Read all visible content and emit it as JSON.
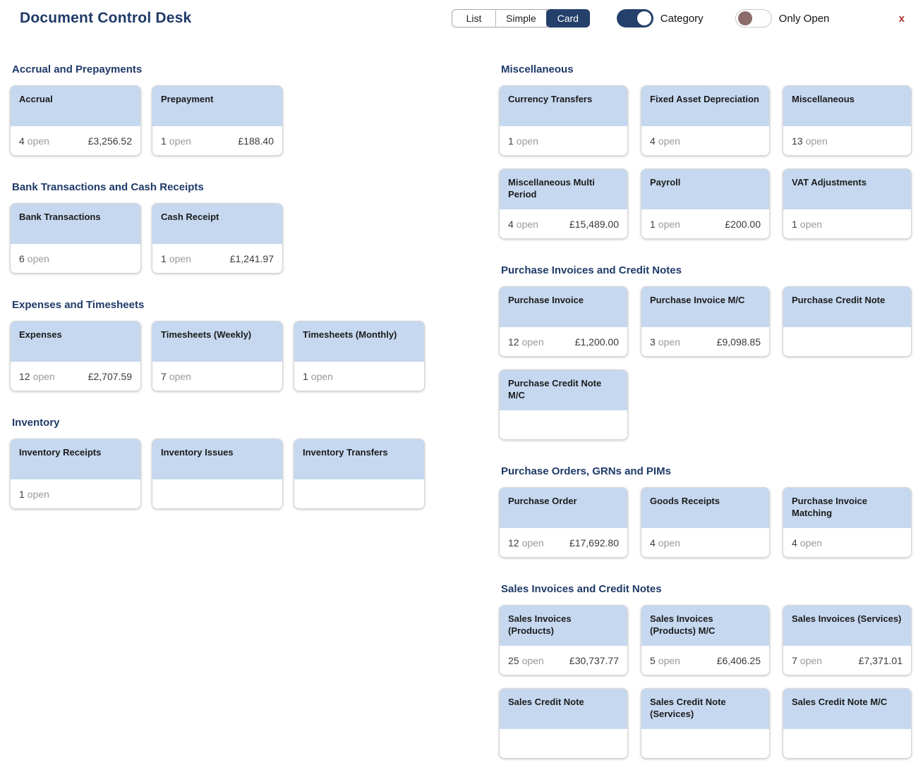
{
  "header": {
    "title": "Document Control Desk",
    "view_switcher": {
      "options": [
        "List",
        "Simple",
        "Card"
      ],
      "selected": "Card"
    },
    "toggles": [
      {
        "name": "category",
        "label": "Category",
        "on": true
      },
      {
        "name": "only-open",
        "label": "Only Open",
        "on": false
      }
    ],
    "close_label": "x"
  },
  "open_label": "open",
  "colors": {
    "heading_navy": "#1f3a68",
    "selected_segment": "#24406b",
    "toggle_on": "#24406b",
    "toggle_off_knob": "#8d6b6b",
    "card_header_blue": "#c6d8f0",
    "close_red": "#a83434"
  },
  "columns": [
    {
      "sections": [
        {
          "title": "Accrual and Prepayments",
          "cards": [
            {
              "title": "Accrual",
              "open": "4",
              "amount": "£3,256.52"
            },
            {
              "title": "Prepayment",
              "open": "1",
              "amount": "£188.40"
            }
          ]
        },
        {
          "title": "Bank Transactions and Cash Receipts",
          "cards": [
            {
              "title": "Bank Transactions",
              "open": "6",
              "amount": ""
            },
            {
              "title": "Cash Receipt",
              "open": "1",
              "amount": "£1,241.97"
            }
          ]
        },
        {
          "title": "Expenses and Timesheets",
          "cards": [
            {
              "title": "Expenses",
              "open": "12",
              "amount": "£2,707.59"
            },
            {
              "title": "Timesheets (Weekly)",
              "open": "7",
              "amount": ""
            },
            {
              "title": "Timesheets (Monthly)",
              "open": "1",
              "amount": ""
            }
          ]
        },
        {
          "title": "Inventory",
          "cards": [
            {
              "title": "Inventory Receipts",
              "open": "1",
              "amount": ""
            },
            {
              "title": "Inventory Issues",
              "open": "",
              "amount": ""
            },
            {
              "title": "Inventory Transfers",
              "open": "",
              "amount": ""
            }
          ]
        }
      ]
    },
    {
      "sections": [
        {
          "title": "Miscellaneous",
          "cards": [
            {
              "title": "Currency Transfers",
              "open": "1",
              "amount": ""
            },
            {
              "title": "Fixed Asset Depreciation",
              "open": "4",
              "amount": ""
            },
            {
              "title": "Miscellaneous",
              "open": "13",
              "amount": ""
            },
            {
              "title": "Miscellaneous Multi Period",
              "open": "4",
              "amount": "£15,489.00"
            },
            {
              "title": "Payroll",
              "open": "1",
              "amount": "£200.00"
            },
            {
              "title": "VAT Adjustments",
              "open": "1",
              "amount": ""
            }
          ]
        },
        {
          "title": "Purchase Invoices and Credit Notes",
          "cards": [
            {
              "title": "Purchase Invoice",
              "open": "12",
              "amount": "£1,200.00"
            },
            {
              "title": "Purchase Invoice M/C",
              "open": "3",
              "amount": "£9,098.85"
            },
            {
              "title": "Purchase Credit Note",
              "open": "",
              "amount": ""
            },
            {
              "title": "Purchase Credit Note M/C",
              "open": "",
              "amount": ""
            }
          ]
        },
        {
          "title": "Purchase Orders, GRNs and PIMs",
          "cards": [
            {
              "title": "Purchase Order",
              "open": "12",
              "amount": "£17,692.80"
            },
            {
              "title": "Goods Receipts",
              "open": "4",
              "amount": ""
            },
            {
              "title": "Purchase Invoice Matching",
              "open": "4",
              "amount": ""
            }
          ]
        },
        {
          "title": "Sales Invoices and Credit Notes",
          "cards": [
            {
              "title": "Sales Invoices (Products)",
              "open": "25",
              "amount": "£30,737.77"
            },
            {
              "title": "Sales Invoices (Products) M/C",
              "open": "5",
              "amount": "£6,406.25"
            },
            {
              "title": "Sales Invoices (Services)",
              "open": "7",
              "amount": "£7,371.01"
            },
            {
              "title": "Sales Credit Note",
              "open": "",
              "amount": ""
            },
            {
              "title": "Sales Credit Note (Services)",
              "open": "",
              "amount": ""
            },
            {
              "title": "Sales Credit Note M/C",
              "open": "",
              "amount": ""
            }
          ]
        }
      ]
    }
  ]
}
